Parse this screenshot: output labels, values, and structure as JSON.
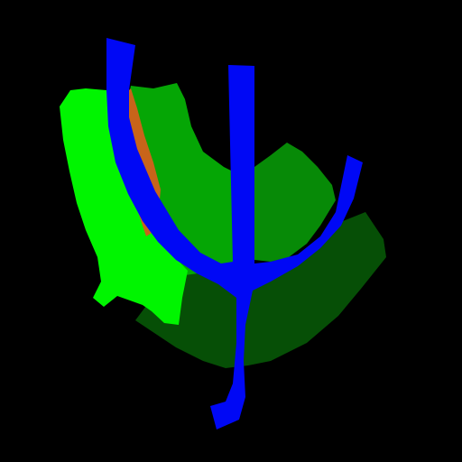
{
  "image": {
    "kind": "segmentation-mask",
    "background_color": "#000000",
    "regions": [
      {
        "id": "region-dark-green",
        "color": "#064f06"
      },
      {
        "id": "region-medium-green",
        "color": "#078a07"
      },
      {
        "id": "region-green",
        "color": "#05a605"
      },
      {
        "id": "region-lime",
        "color": "#00f500"
      },
      {
        "id": "region-orange",
        "color": "#c8641a"
      },
      {
        "id": "region-blue",
        "color": "#0008f5"
      }
    ]
  }
}
